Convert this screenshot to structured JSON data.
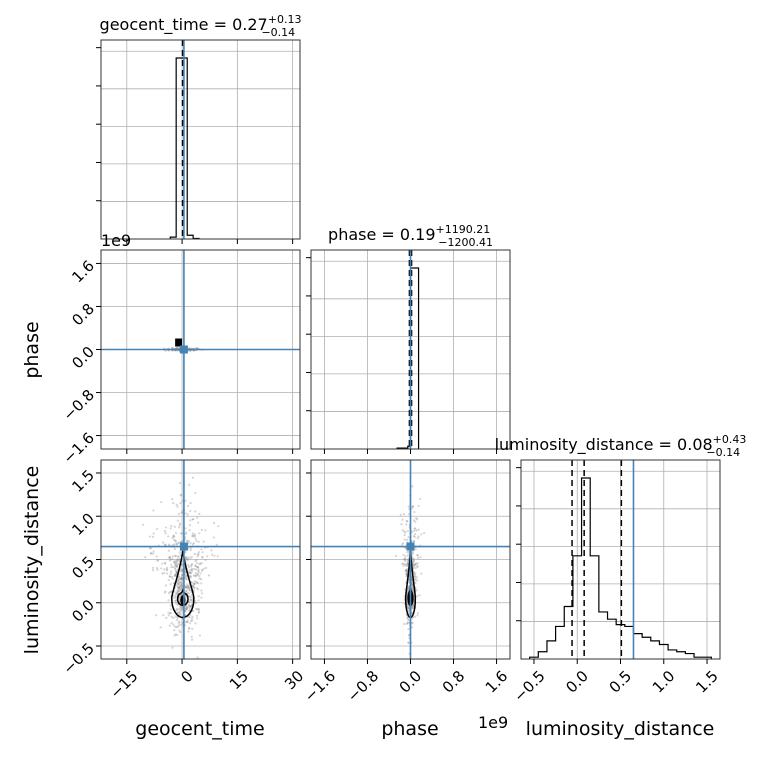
{
  "chart_data": {
    "type": "corner",
    "parameters": [
      "geocent_time",
      "phase",
      "luminosity_distance"
    ],
    "axis_labels": {
      "geocent_time": "geocent_time",
      "phase": "phase",
      "luminosity_distance": "luminosity_distance"
    },
    "offset_labels": {
      "phase_y": "1e9",
      "phase_x": "1e9"
    },
    "titles": [
      {
        "name": "geocent_time",
        "median": "0.27",
        "plus": "+0.13",
        "minus": "−0.14"
      },
      {
        "name": "phase",
        "median": "0.19",
        "plus": "+1190.21",
        "minus": "−1200.41"
      },
      {
        "name": "luminosity_distance",
        "median": "0.08",
        "plus": "+0.43",
        "minus": "−0.14"
      }
    ],
    "ranges": {
      "geocent_time": [
        -22,
        32
      ],
      "phase": [
        -1.85,
        1.85
      ],
      "luminosity_distance": [
        -0.65,
        1.65
      ]
    },
    "ticks": {
      "geocent_time": {
        "values": [
          -15,
          0,
          15,
          30
        ],
        "labels": [
          "−15",
          "0",
          "15",
          "30"
        ]
      },
      "phase": {
        "values": [
          -1.6,
          -0.8,
          0.0,
          0.8,
          1.6
        ],
        "labels": [
          "−1.6",
          "−0.8",
          "0.0",
          "0.8",
          "1.6"
        ]
      },
      "luminosity_distance": {
        "values": [
          -0.5,
          0.0,
          0.5,
          1.0,
          1.5
        ],
        "labels": [
          "−0.5",
          "0.0",
          "0.5",
          "1.0",
          "1.5"
        ]
      }
    },
    "truths": {
      "geocent_time": 0.5,
      "phase": 0.0,
      "luminosity_distance": 0.65
    },
    "quantiles": {
      "geocent_time": [
        0.13,
        0.27,
        0.4
      ],
      "phase": [
        -0.02,
        0.0002,
        0.02
      ],
      "luminosity_distance": [
        -0.06,
        0.08,
        0.51
      ]
    },
    "diag_hist": {
      "geocent_time": {
        "edges": [
          -3.2,
          -1.6,
          -0.2,
          1.4,
          3.0,
          4.6
        ],
        "heights": [
          0.01,
          0.96,
          0.96,
          0.02,
          0.003
        ]
      },
      "phase": {
        "edges": [
          -0.25,
          -0.05,
          0.0,
          0.15
        ],
        "heights": [
          0.005,
          0.015,
          1.0
        ]
      },
      "luminosity_distance": {
        "edges": [
          -0.55,
          -0.45,
          -0.35,
          -0.25,
          -0.15,
          -0.05,
          0.05,
          0.15,
          0.25,
          0.35,
          0.45,
          0.55,
          0.65,
          0.75,
          0.85,
          0.95,
          1.05,
          1.15,
          1.25,
          1.35,
          1.45,
          1.55
        ],
        "heights": [
          0.01,
          0.04,
          0.1,
          0.18,
          0.29,
          0.57,
          1.0,
          0.57,
          0.26,
          0.22,
          0.19,
          0.18,
          0.14,
          0.12,
          0.1,
          0.08,
          0.05,
          0.04,
          0.03,
          0.01,
          0.01
        ]
      }
    },
    "grid": true,
    "colors": {
      "truth": "#4682b4",
      "hist": "#000000",
      "grid": "#b0b0b0",
      "scatter": "#888888"
    }
  }
}
